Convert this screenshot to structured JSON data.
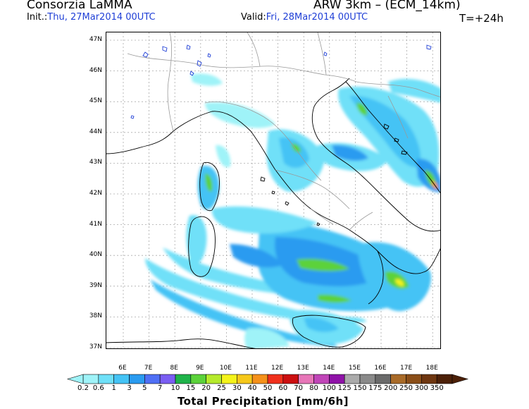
{
  "header": {
    "org": "Consorzia LaMMA",
    "model": "ARW 3km  –  (ECM_14km)",
    "init_label": "Init.:",
    "init_value": "Thu, 27Mar2014 00UTC",
    "valid_label": "Valid:",
    "valid_value": "Fri, 28Mar2014 00UTC",
    "step": "T=+24h"
  },
  "axes": {
    "lat_labels": [
      "47N",
      "46N",
      "45N",
      "44N",
      "43N",
      "42N",
      "41N",
      "40N",
      "39N",
      "38N",
      "37N"
    ],
    "lon_labels": [
      "6E",
      "7E",
      "8E",
      "9E",
      "10E",
      "11E",
      "12E",
      "13E",
      "14E",
      "15E",
      "16E",
      "17E",
      "18E"
    ]
  },
  "colorbar": {
    "title": "Total Precipitation [mm/6h]",
    "labels": [
      "0.2",
      "0.6",
      "1",
      "3",
      "5",
      "7",
      "10",
      "15",
      "20",
      "25",
      "30",
      "40",
      "50",
      "60",
      "70",
      "80",
      "100",
      "125",
      "150",
      "175",
      "200",
      "250",
      "300",
      "350"
    ],
    "colors": [
      "#9ff3f8",
      "#6fe0f8",
      "#44c3f5",
      "#2a9bf0",
      "#4f6ff5",
      "#7a5ef3",
      "#1fb34a",
      "#5bd23a",
      "#b5ea2c",
      "#f4f31a",
      "#f6c81a",
      "#f5911a",
      "#f0301c",
      "#cc0f10",
      "#e776b8",
      "#c045b8",
      "#8f12a8",
      "#aaaaaa",
      "#8a8a8a",
      "#6a6a6a",
      "#a86a28",
      "#8a4e18",
      "#6e3610",
      "#4c2008"
    ]
  },
  "colors": {
    "frame": "#000000",
    "coast": "#000000",
    "borders": "#999999",
    "grid": "#aaaaaa",
    "header_blue": "#1f3fd6"
  }
}
